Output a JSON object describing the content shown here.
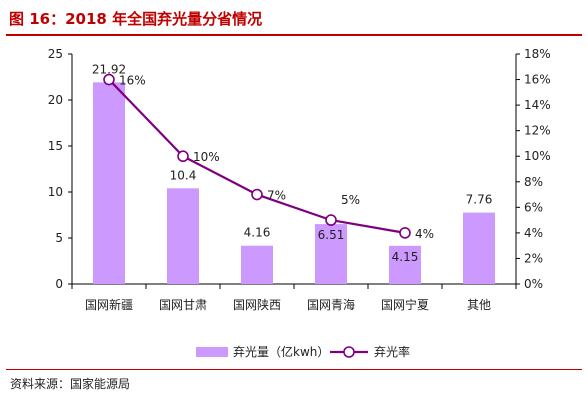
{
  "figure": {
    "title": "图 16：2018 年全国弃光量分省情况",
    "source": "资料来源：国家能源局"
  },
  "colors": {
    "bar": "#cc99ff",
    "line": "#7f007f",
    "title": "#c00000"
  },
  "chart_data": {
    "type": "bar",
    "title": "",
    "xlabel": "",
    "ylabel": "",
    "categories": [
      "国网新疆",
      "国网甘肃",
      "国网陕西",
      "国网青海",
      "国网宁夏",
      "其他"
    ],
    "series": [
      {
        "name": "弃光量（亿kwh）",
        "type": "bar",
        "axis": "left",
        "values": [
          21.92,
          10.4,
          4.16,
          6.51,
          4.15,
          7.76
        ],
        "labels": [
          "21.92",
          "10.4",
          "4.16",
          "6.51",
          "4.15",
          "7.76"
        ]
      },
      {
        "name": "弃光率",
        "type": "line",
        "axis": "right",
        "values": [
          16,
          10,
          7,
          5,
          4,
          null
        ],
        "labels": [
          "16%",
          "10%",
          "7%",
          "5%",
          "4%",
          null
        ]
      }
    ],
    "ylim": [
      0,
      25
    ],
    "yticks": [
      "0",
      "5",
      "10",
      "15",
      "20",
      "25"
    ],
    "y2lim": [
      0,
      18
    ],
    "y2ticks": [
      "0%",
      "2%",
      "4%",
      "6%",
      "8%",
      "10%",
      "12%",
      "14%",
      "16%",
      "18%"
    ],
    "grid": false,
    "legend": "bottom"
  }
}
